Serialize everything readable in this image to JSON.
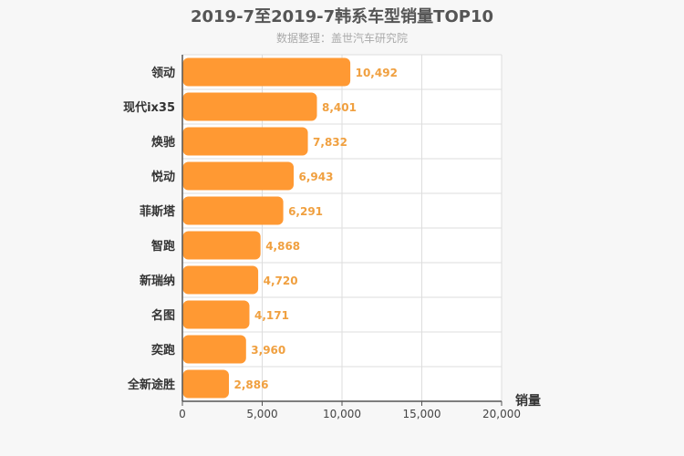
{
  "chart_data": {
    "type": "bar",
    "orientation": "horizontal",
    "title": "2019-7至2019-7韩系车型销量TOP10",
    "subtitle": "数据整理：盖世汽车研究院",
    "xlabel": "销量",
    "categories": [
      "领动",
      "现代ix35",
      "焕驰",
      "悦动",
      "菲斯塔",
      "智跑",
      "新瑞纳",
      "名图",
      "奕跑",
      "全新途胜"
    ],
    "values": [
      10492,
      8401,
      7832,
      6943,
      6291,
      4868,
      4720,
      4171,
      3960,
      2886
    ],
    "value_labels": [
      "10,492",
      "8,401",
      "7,832",
      "6,943",
      "6,291",
      "4,868",
      "4,720",
      "4,171",
      "3,960",
      "2,886"
    ],
    "xlim": [
      0,
      20000
    ],
    "xticks": [
      0,
      5000,
      10000,
      15000,
      20000
    ],
    "xtick_labels": [
      "0",
      "5,000",
      "10,000",
      "15,000",
      "20,000"
    ],
    "grid": true,
    "bar_color": "#ff9933",
    "label_color": "#f0a040"
  }
}
